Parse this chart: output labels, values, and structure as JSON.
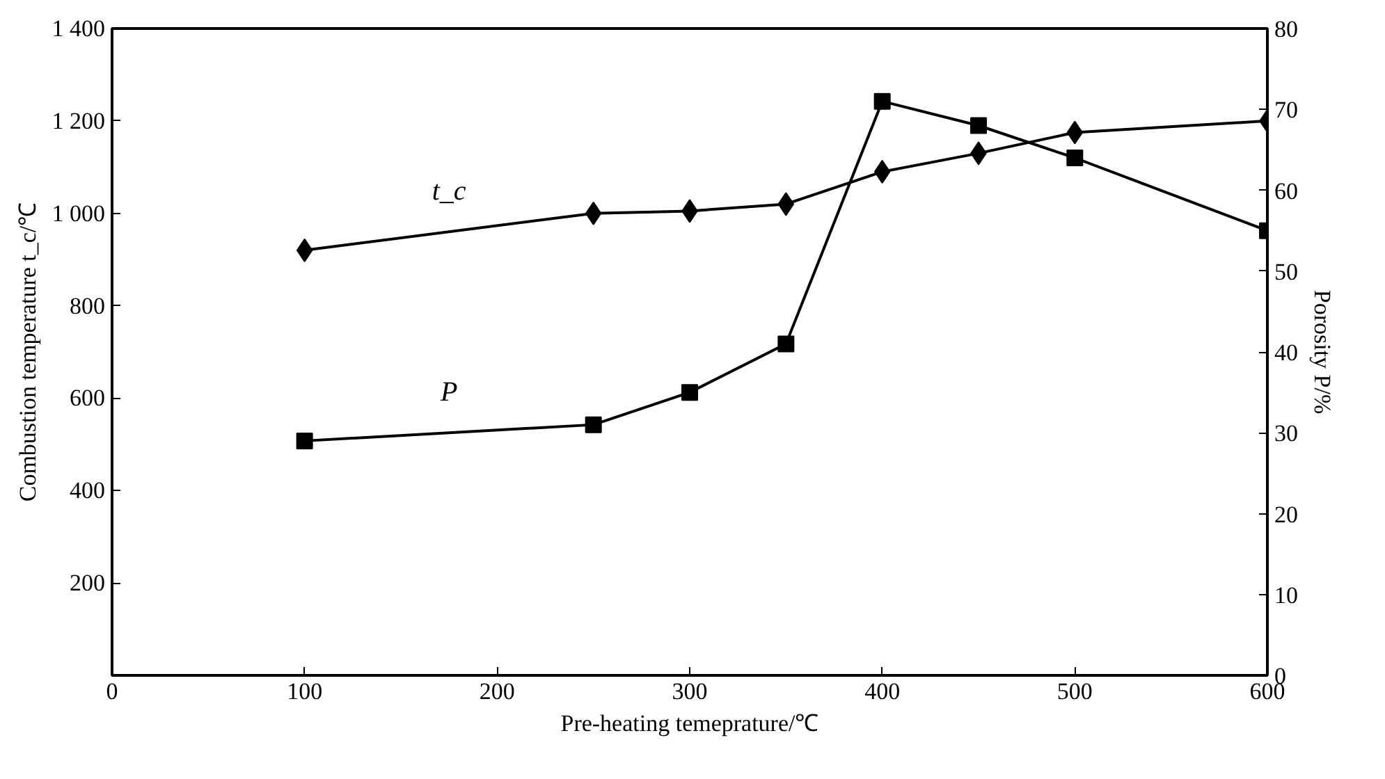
{
  "chart_data": {
    "type": "line",
    "xlabel": "Pre-heating temeprature/℃",
    "ylabel": "Combustion temperature t_c/℃",
    "y2label": "Porosity P/%",
    "xlim": [
      0,
      600
    ],
    "xticks": [
      0,
      100,
      200,
      300,
      400,
      500,
      600
    ],
    "ylim": [
      0,
      1400
    ],
    "yticks": [
      200,
      400,
      600,
      800,
      {
        "value": 1000,
        "label": "1 000"
      },
      {
        "value": 1200,
        "label": "1 200"
      },
      {
        "value": 1400,
        "label": "1 400"
      }
    ],
    "y2lim": [
      0,
      80
    ],
    "y2ticks": [
      0,
      10,
      20,
      30,
      40,
      50,
      60,
      70,
      80
    ],
    "grid": false,
    "series": [
      {
        "x": [
          100,
          250,
          300,
          350,
          400,
          450,
          500,
          600
        ],
        "values": [
          920,
          1000,
          1005,
          1020,
          1090,
          1130,
          1175,
          1200
        ],
        "color": "#000000",
        "marker": "diamond"
      },
      {
        "x": [
          100,
          250,
          300,
          350,
          400,
          450,
          500,
          600
        ],
        "values": [
          29,
          31,
          35,
          41,
          71,
          68,
          64,
          55
        ],
        "color": "#000000",
        "marker": "square",
        "axis": "y2"
      }
    ],
    "annotations": [
      "t_c",
      "P"
    ]
  }
}
